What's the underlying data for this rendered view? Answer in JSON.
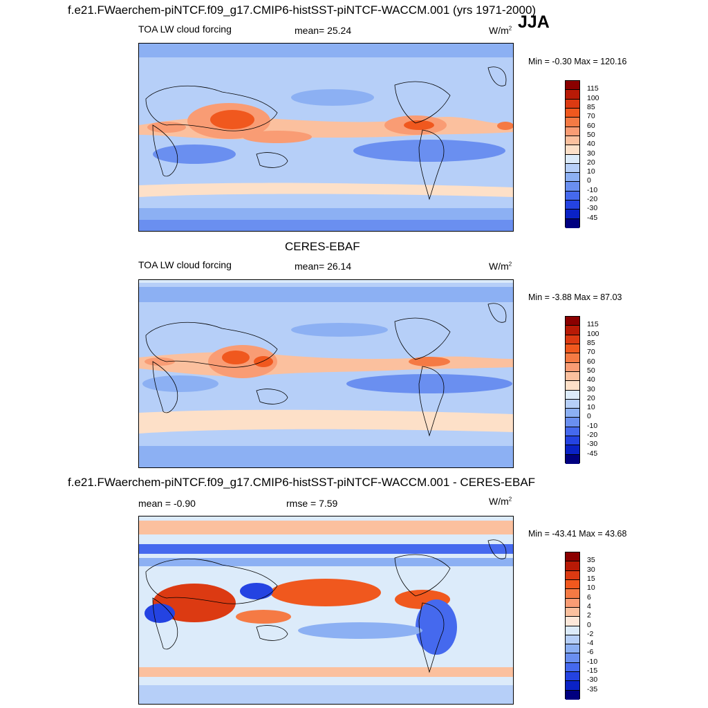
{
  "season": "JJA",
  "top_title": "f.e21.FWaerchem-piNTCF.f09_g17.CMIP6-histSST-piNTCF-WACCM.001 (yrs 1971-2000)",
  "unit_base": "W/m",
  "unit_exp": "2",
  "panels": [
    {
      "id": "model",
      "title": "",
      "left_label": "TOA LW cloud forcing",
      "stat_label": "mean=  25.24",
      "minmax": "Min =  -0.30 Max = 120.16",
      "colorbar": {
        "colors": [
          "#8b0000",
          "#b81a06",
          "#dc3a12",
          "#f0581e",
          "#f57a44",
          "#f99c74",
          "#fbc09e",
          "#fde0c8",
          "#dcebfa",
          "#b6cff8",
          "#8cb0f3",
          "#6a8ff0",
          "#4569ee",
          "#2443e2",
          "#0a22c6",
          "#000080"
        ],
        "labels": [
          "115",
          "100",
          "85",
          "70",
          "60",
          "50",
          "40",
          "30",
          "20",
          "10",
          "0",
          "-10",
          "-20",
          "-30",
          "-45"
        ]
      }
    },
    {
      "id": "obs",
      "title": "CERES-EBAF",
      "left_label": "TOA LW cloud forcing",
      "stat_label": "mean=  26.14",
      "minmax": "Min =  -3.88 Max =  87.03",
      "colorbar": {
        "colors": [
          "#8b0000",
          "#b81a06",
          "#dc3a12",
          "#f0581e",
          "#f57a44",
          "#f99c74",
          "#fbc09e",
          "#fde0c8",
          "#dcebfa",
          "#b6cff8",
          "#8cb0f3",
          "#6a8ff0",
          "#4569ee",
          "#2443e2",
          "#0a22c6",
          "#000080"
        ],
        "labels": [
          "115",
          "100",
          "85",
          "70",
          "60",
          "50",
          "40",
          "30",
          "20",
          "10",
          "0",
          "-10",
          "-20",
          "-30",
          "-45"
        ]
      }
    },
    {
      "id": "diff",
      "title": "f.e21.FWaerchem-piNTCF.f09_g17.CMIP6-histSST-piNTCF-WACCM.001 - CERES-EBAF",
      "left_label": "mean =  -0.90",
      "stat_label": "rmse =   7.59",
      "minmax": "Min = -43.41 Max =  43.68",
      "colorbar": {
        "colors": [
          "#8b0000",
          "#b81a06",
          "#dc3a12",
          "#f0581e",
          "#f57a44",
          "#f99c74",
          "#fbc09e",
          "#fde8da",
          "#dcebfa",
          "#b6cff8",
          "#8cb0f3",
          "#6a8ff0",
          "#4569ee",
          "#2443e2",
          "#0a22c6",
          "#000080"
        ],
        "labels": [
          "35",
          "30",
          "15",
          "10",
          "6",
          "4",
          "2",
          "0",
          "-2",
          "-4",
          "-6",
          "-10",
          "-15",
          "-30",
          "-35"
        ]
      }
    }
  ],
  "chart_data": {
    "type": "heatmap",
    "title": "f.e21.FWaerchem-piNTCF.f09_g17.CMIP6-histSST-piNTCF-WACCM.001 (yrs 1971-2000)",
    "variable": "TOA LW cloud forcing",
    "units": "W/m2",
    "season": "JJA",
    "maps": [
      {
        "name": "model",
        "mean": 25.24,
        "min": -0.3,
        "max": 120.16,
        "contour_levels": [
          -45,
          -30,
          -20,
          -10,
          0,
          10,
          20,
          30,
          40,
          50,
          60,
          70,
          85,
          100,
          115
        ]
      },
      {
        "name": "CERES-EBAF",
        "mean": 26.14,
        "min": -3.88,
        "max": 87.03,
        "contour_levels": [
          -45,
          -30,
          -20,
          -10,
          0,
          10,
          20,
          30,
          40,
          50,
          60,
          70,
          85,
          100,
          115
        ]
      },
      {
        "name": "model - CERES-EBAF",
        "mean": -0.9,
        "rmse": 7.59,
        "min": -43.41,
        "max": 43.68,
        "contour_levels": [
          -35,
          -30,
          -15,
          -10,
          -6,
          -4,
          -2,
          0,
          2,
          4,
          6,
          10,
          15,
          30,
          35
        ]
      }
    ]
  }
}
